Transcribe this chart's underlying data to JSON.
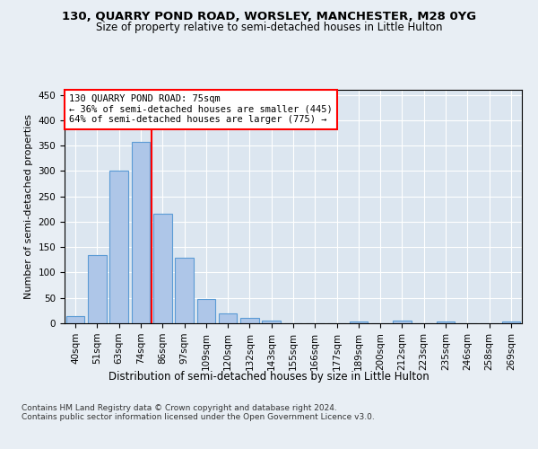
{
  "title": "130, QUARRY POND ROAD, WORSLEY, MANCHESTER, M28 0YG",
  "subtitle": "Size of property relative to semi-detached houses in Little Hulton",
  "xlabel": "Distribution of semi-detached houses by size in Little Hulton",
  "ylabel": "Number of semi-detached properties",
  "footnote": "Contains HM Land Registry data © Crown copyright and database right 2024.\nContains public sector information licensed under the Open Government Licence v3.0.",
  "bar_labels": [
    "40sqm",
    "51sqm",
    "63sqm",
    "74sqm",
    "86sqm",
    "97sqm",
    "109sqm",
    "120sqm",
    "132sqm",
    "143sqm",
    "155sqm",
    "166sqm",
    "177sqm",
    "189sqm",
    "200sqm",
    "212sqm",
    "223sqm",
    "235sqm",
    "246sqm",
    "258sqm",
    "269sqm"
  ],
  "bar_values": [
    15,
    135,
    300,
    357,
    215,
    130,
    48,
    20,
    10,
    5,
    0,
    0,
    0,
    4,
    0,
    5,
    0,
    3,
    0,
    0,
    3
  ],
  "bar_color": "#aec6e8",
  "bar_edge_color": "#5b9bd5",
  "vline_x": 3.5,
  "vline_color": "red",
  "annotation_title": "130 QUARRY POND ROAD: 75sqm",
  "annotation_line1": "← 36% of semi-detached houses are smaller (445)",
  "annotation_line2": "64% of semi-detached houses are larger (775) →",
  "annotation_box_color": "white",
  "annotation_box_edge": "red",
  "ylim": [
    0,
    460
  ],
  "yticks": [
    0,
    50,
    100,
    150,
    200,
    250,
    300,
    350,
    400,
    450
  ],
  "background_color": "#e8eef4",
  "plot_bg_color": "#dce6f0",
  "title_fontsize": 9.5,
  "subtitle_fontsize": 8.5,
  "ylabel_fontsize": 8,
  "xlabel_fontsize": 8.5,
  "tick_fontsize": 7.5,
  "annotation_fontsize": 7.5,
  "footnote_fontsize": 6.5
}
